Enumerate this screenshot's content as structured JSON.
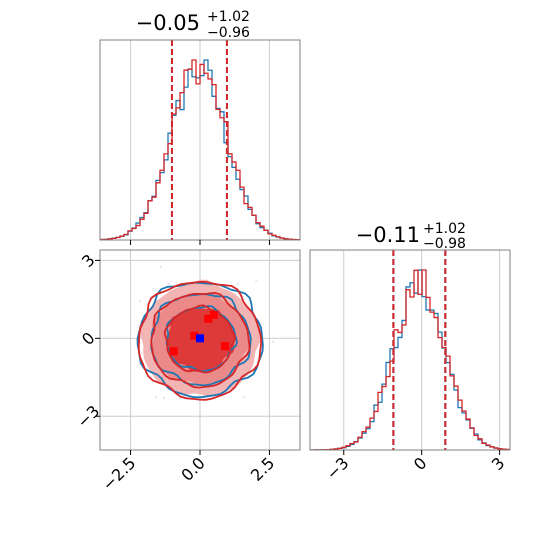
{
  "chart_data": [
    {
      "type": "histogram",
      "panel": "upper-left",
      "title_median": "−0.05",
      "title_plus": "+1.02",
      "title_minus": "−0.96",
      "xlim": [
        -3.6,
        3.6
      ],
      "grid": true,
      "quantile_lines": [
        -1.01,
        -0.05,
        0.97
      ],
      "series": [
        {
          "color": "#1f77b4",
          "style": "step"
        },
        {
          "color": "#d62728",
          "style": "step"
        }
      ]
    },
    {
      "type": "contour",
      "panel": "lower-left",
      "xlim": [
        -3.6,
        3.6
      ],
      "ylim": [
        -4.3,
        3.4
      ],
      "xticks": [
        "−2.5",
        "0.0",
        "2.5"
      ],
      "yticks": [
        "3",
        "0",
        "−3"
      ],
      "xtick_values": [
        -2.5,
        0.0,
        2.5
      ],
      "ytick_values": [
        3,
        0,
        -3
      ],
      "grid": true,
      "series": [
        {
          "color": "#1f77b4"
        },
        {
          "color": "#d62728"
        }
      ],
      "truth_point": {
        "x": 0.0,
        "y": 0.0,
        "color": "#0000ff"
      },
      "contour_levels": [
        0.5,
        1.0,
        1.5
      ]
    },
    {
      "type": "histogram",
      "panel": "lower-right",
      "title_median": "−0.11",
      "title_plus": "+1.02",
      "title_minus": "−0.98",
      "xlim": [
        -4.3,
        3.4
      ],
      "xticks": [
        "−3",
        "0",
        "3"
      ],
      "xtick_values": [
        -3,
        0,
        3
      ],
      "grid": true,
      "quantile_lines": [
        -1.09,
        -0.11,
        0.91
      ],
      "series": [
        {
          "color": "#1f77b4",
          "style": "step"
        },
        {
          "color": "#d62728",
          "style": "step"
        }
      ]
    }
  ]
}
